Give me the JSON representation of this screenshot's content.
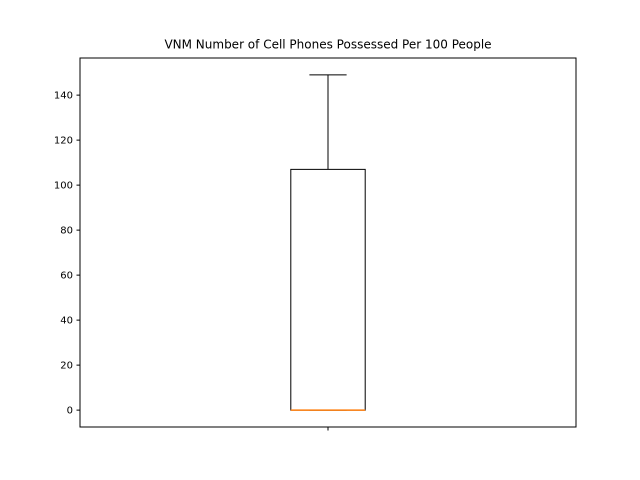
{
  "chart_data": {
    "type": "box",
    "title": "VNM Number of Cell Phones Possessed Per 100 People",
    "xlabel": "",
    "ylabel": "",
    "ylim": [
      -7.5,
      156.5
    ],
    "yticks": [
      0,
      20,
      40,
      60,
      80,
      100,
      120,
      140
    ],
    "xticks": [
      ""
    ],
    "grid": false,
    "boxes": [
      {
        "whisker_low": 0,
        "q1": 0,
        "median": 0,
        "q3": 107,
        "whisker_high": 149
      }
    ],
    "colors": {
      "box": "#000000",
      "median": "#ff7f0e",
      "axes": "#000000"
    }
  }
}
